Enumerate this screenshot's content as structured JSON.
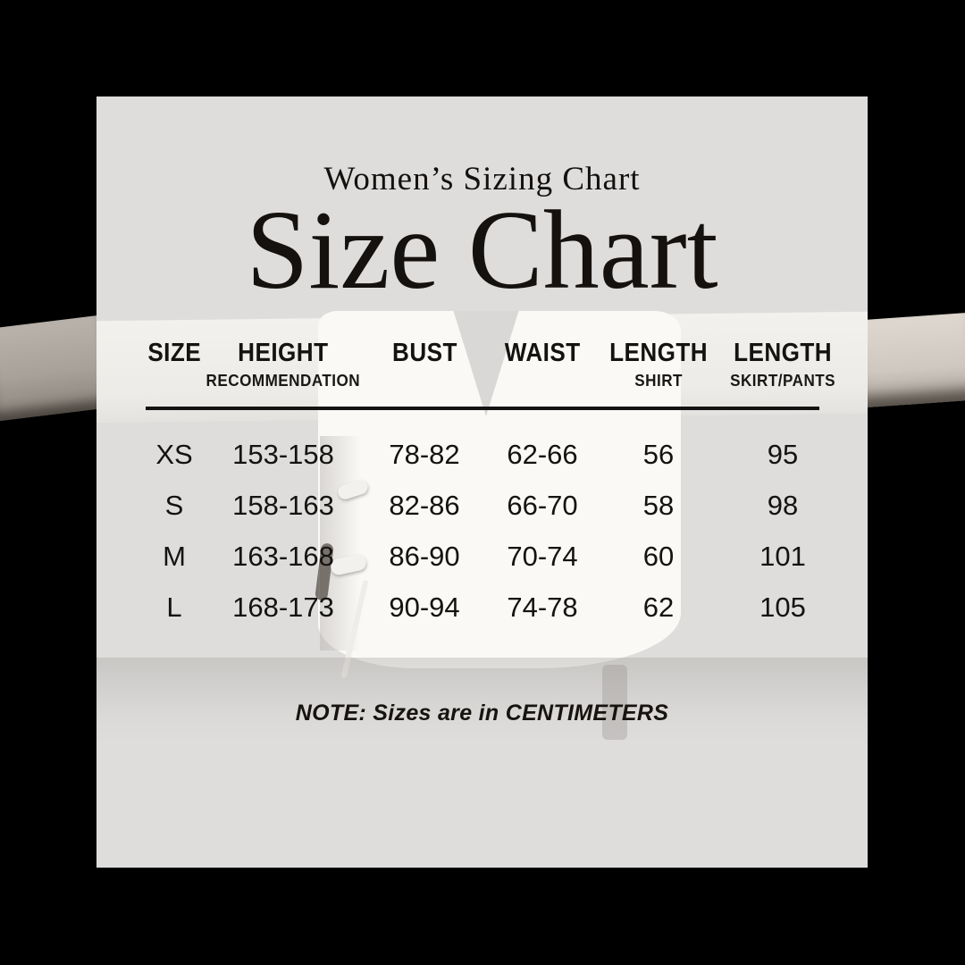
{
  "colors": {
    "canvas_background": "#000000",
    "panel_background": "#dedddc",
    "text": "#141210"
  },
  "chart_data": {
    "type": "table",
    "subtitle": "Women’s Sizing Chart",
    "title": "Size Chart",
    "columns": [
      {
        "label": "SIZE",
        "sublabel": ""
      },
      {
        "label": "HEIGHT",
        "sublabel": "RECOMMENDATION"
      },
      {
        "label": "BUST",
        "sublabel": ""
      },
      {
        "label": "WAIST",
        "sublabel": ""
      },
      {
        "label": "LENGTH",
        "sublabel": "SHIRT"
      },
      {
        "label": "LENGTH",
        "sublabel": "SKIRT/PANTS"
      }
    ],
    "rows": [
      [
        "XS",
        "153-158",
        "78-82",
        "62-66",
        "56",
        "95"
      ],
      [
        "S",
        "158-163",
        "82-86",
        "66-70",
        "58",
        "98"
      ],
      [
        "M",
        "163-168",
        "86-90",
        "70-74",
        "60",
        "101"
      ],
      [
        "L",
        "168-173",
        "90-94",
        "74-78",
        "62",
        "105"
      ]
    ],
    "note": "NOTE: Sizes are in CENTIMETERS"
  }
}
